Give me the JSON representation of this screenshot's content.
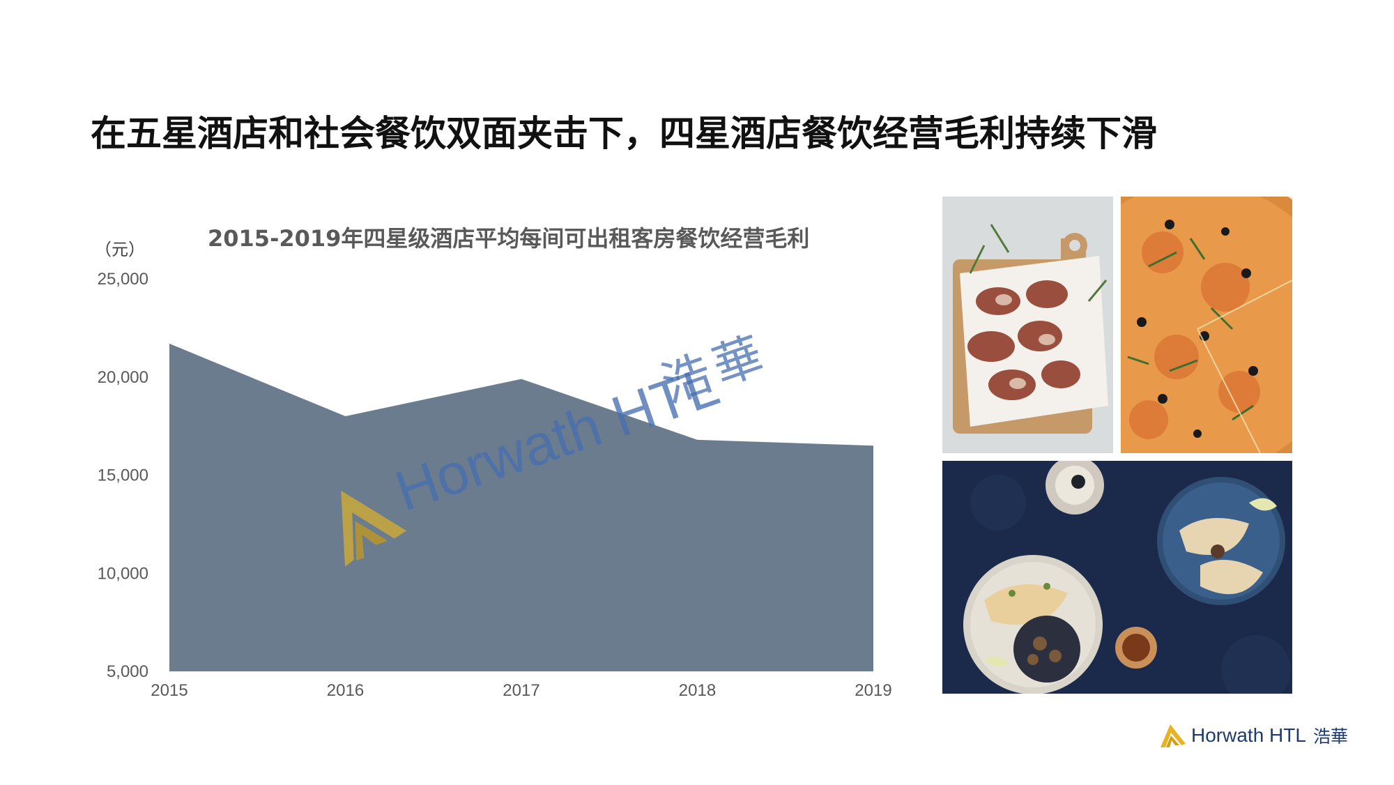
{
  "slide": {
    "title": "在五星酒店和社会餐饮双面夹击下，四星酒店餐饮经营毛利持续下滑"
  },
  "chart_data": {
    "type": "area",
    "title": "2015-2019年四星级酒店平均每间可出租客房餐饮经营毛利",
    "unit_label": "（元）",
    "categories": [
      "2015",
      "2016",
      "2017",
      "2018",
      "2019"
    ],
    "series": [
      {
        "values": [
          21700,
          18000,
          19900,
          16800,
          16500
        ]
      }
    ],
    "ylim": [
      5000,
      25000
    ],
    "yticks": [
      "25,000",
      "20,000",
      "15,000",
      "10,000",
      "5,000"
    ],
    "ytick_values": [
      25000,
      20000,
      15000,
      10000,
      5000
    ],
    "fill_color": "#6b7c8e",
    "grid": false,
    "legend": "none"
  },
  "watermark": {
    "brand": "Horwath HTL",
    "chinese": "浩華",
    "logo_color": "#c9a93a"
  },
  "photos": [
    {
      "subject": "bacon-wrapped skewers on wooden board"
    },
    {
      "subject": "pizza with arugula and olives"
    },
    {
      "subject": "tacos and plated dishes on dark table"
    }
  ],
  "footer": {
    "brand": "Horwath HTL",
    "chinese": "浩華",
    "logo_color": "#e6b422"
  }
}
